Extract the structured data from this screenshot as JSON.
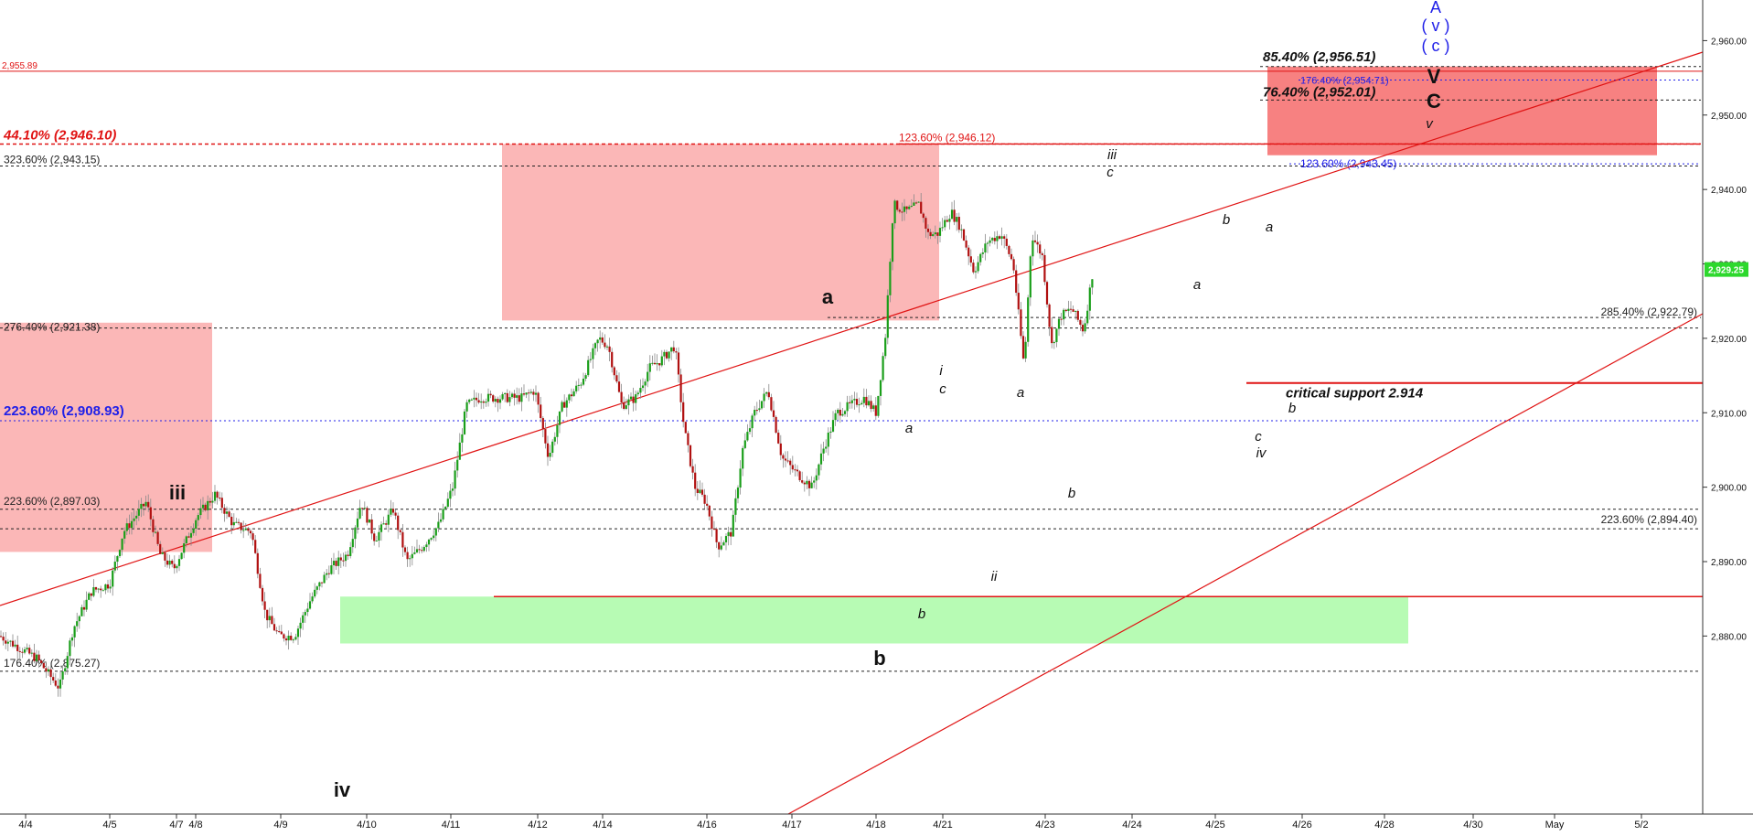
{
  "chart_data": {
    "type": "candlestick",
    "instrument_price_label": "2,929.25",
    "colors": {
      "up": "#1a9e1a",
      "down": "#b01010",
      "resistance_zone": "#f77a7a",
      "target_zone": "#fbb3b3",
      "support_zone": "#b3fbb0",
      "red_line": "#e01414",
      "blue_dotted": "#2020e8",
      "black_dotted": "#222222",
      "last_price_bg": "#2dd82d"
    },
    "x_ticks": [
      "4/4",
      "4/5",
      "4/7",
      "4/8",
      "4/9",
      "4/10",
      "4/11",
      "4/12",
      "4/14",
      "4/16",
      "4/17",
      "4/18",
      "4/21",
      "4/23",
      "4/24",
      "4/25",
      "4/26",
      "4/28",
      "4/30",
      "May",
      "5/2"
    ],
    "y_ticks": [
      "2,880.00",
      "2,890.00",
      "2,900.00",
      "2,910.00",
      "2,920.00",
      "2,930.00",
      "2,940.00",
      "2,950.00",
      "2,960.00"
    ],
    "ylim": [
      2868,
      2963
    ],
    "price_path": [
      [
        0,
        2880
      ],
      [
        40,
        2877
      ],
      [
        65,
        2873
      ],
      [
        80,
        2881
      ],
      [
        100,
        2886
      ],
      [
        120,
        2887
      ],
      [
        135,
        2894
      ],
      [
        160,
        2898
      ],
      [
        175,
        2891
      ],
      [
        190,
        2889
      ],
      [
        215,
        2896
      ],
      [
        235,
        2899
      ],
      [
        255,
        2895
      ],
      [
        275,
        2894
      ],
      [
        290,
        2883
      ],
      [
        305,
        2880
      ],
      [
        322,
        2880
      ],
      [
        340,
        2885
      ],
      [
        360,
        2889
      ],
      [
        380,
        2891
      ],
      [
        395,
        2898
      ],
      [
        410,
        2893
      ],
      [
        430,
        2897
      ],
      [
        445,
        2890
      ],
      [
        462,
        2892
      ],
      [
        480,
        2895
      ],
      [
        495,
        2900
      ],
      [
        510,
        2911
      ],
      [
        525,
        2912
      ],
      [
        545,
        2912
      ],
      [
        570,
        2912
      ],
      [
        585,
        2913
      ],
      [
        600,
        2904
      ],
      [
        615,
        2911
      ],
      [
        635,
        2914
      ],
      [
        655,
        2920
      ],
      [
        665,
        2919
      ],
      [
        680,
        2911
      ],
      [
        695,
        2912
      ],
      [
        710,
        2916
      ],
      [
        722,
        2917
      ],
      [
        738,
        2919
      ],
      [
        748,
        2908
      ],
      [
        760,
        2900
      ],
      [
        772,
        2898
      ],
      [
        785,
        2892
      ],
      [
        800,
        2894
      ],
      [
        812,
        2905
      ],
      [
        825,
        2910
      ],
      [
        840,
        2913
      ],
      [
        855,
        2904
      ],
      [
        870,
        2902
      ],
      [
        888,
        2900
      ],
      [
        900,
        2905
      ],
      [
        915,
        2910
      ],
      [
        930,
        2911
      ],
      [
        945,
        2912
      ],
      [
        958,
        2910
      ],
      [
        968,
        2920
      ],
      [
        977,
        2938
      ],
      [
        990,
        2937
      ],
      [
        1005,
        2938
      ],
      [
        1015,
        2934
      ],
      [
        1025,
        2934
      ],
      [
        1040,
        2937
      ],
      [
        1050,
        2935
      ],
      [
        1065,
        2929
      ],
      [
        1080,
        2933
      ],
      [
        1095,
        2934
      ],
      [
        1108,
        2930
      ],
      [
        1120,
        2916
      ],
      [
        1128,
        2934
      ],
      [
        1140,
        2931
      ],
      [
        1150,
        2919
      ],
      [
        1160,
        2923
      ],
      [
        1172,
        2924
      ],
      [
        1185,
        2921
      ],
      [
        1195,
        2929
      ]
    ],
    "horizontal_levels": [
      {
        "label": "2,955.89",
        "value": 2955.89,
        "style": "red-solid",
        "label_side": "left"
      },
      {
        "label": "85.40% (2,956.51)",
        "value": 2956.51,
        "style": "black-dotted",
        "label_side": "right-zone"
      },
      {
        "label": "176.40% (2,954.71)",
        "value": 2954.71,
        "style": "blue-dotted",
        "label_side": "right-zone"
      },
      {
        "label": "76.40% (2,952.01)",
        "value": 2952.01,
        "style": "black-dotted",
        "label_side": "right-zone"
      },
      {
        "label": "44.10% (2,946.10)",
        "value": 2946.1,
        "style": "red-dotted",
        "label_side": "left"
      },
      {
        "label": "123.60% (2,946.12)",
        "value": 2946.12,
        "style": "red-dotted",
        "label_side": "mid"
      },
      {
        "label": "323.60% (2,943.15)",
        "value": 2943.15,
        "style": "black-dotted",
        "label_side": "left"
      },
      {
        "label": "123.60% (2,943.45)",
        "value": 2943.45,
        "style": "blue-dotted",
        "label_side": "right-zone"
      },
      {
        "label": "276.40% (2,921.38)",
        "value": 2921.38,
        "style": "black-dotted",
        "label_side": "left"
      },
      {
        "label": "285.40% (2,922.79)",
        "value": 2922.79,
        "style": "black-dotted",
        "label_side": "right"
      },
      {
        "label": "223.60% (2,908.93)",
        "value": 2908.93,
        "style": "blue-dotted",
        "label_side": "left"
      },
      {
        "label": "223.60% (2,897.03)",
        "value": 2897.03,
        "style": "black-dotted",
        "label_side": "left"
      },
      {
        "label": "223.60% (2,894.40)",
        "value": 2894.4,
        "style": "black-dotted",
        "label_side": "right"
      },
      {
        "label": "176.40% (2,875.27)",
        "value": 2875.27,
        "style": "black-dotted",
        "label_side": "left"
      }
    ],
    "zones": [
      {
        "name": "left-resistance",
        "top": 2922.1,
        "bottom": 2891.3
      },
      {
        "name": "middle-resistance",
        "top": 2946.12,
        "bottom": 2922.4
      },
      {
        "name": "top-right-target",
        "top": 2956.51,
        "bottom": 2944.6
      },
      {
        "name": "support",
        "top": 2885.3,
        "bottom": 2879.0
      }
    ],
    "critical_support": {
      "label": "critical support 2.914",
      "value": 2914.0
    },
    "support_line_value": 2885.3,
    "wave_labels": {
      "large": [
        "iii",
        "iv",
        "a",
        "b"
      ],
      "small": [
        "a",
        "b",
        "i",
        "c",
        "ii",
        "a",
        "b",
        "iii",
        "c",
        "b",
        "a",
        "a",
        "b",
        "c",
        "iv",
        "v"
      ],
      "top_right": {
        "A": "A",
        "v": "( v )",
        "c": "( c )",
        "V": "V",
        "C": "C",
        "small_v": "v"
      }
    }
  }
}
